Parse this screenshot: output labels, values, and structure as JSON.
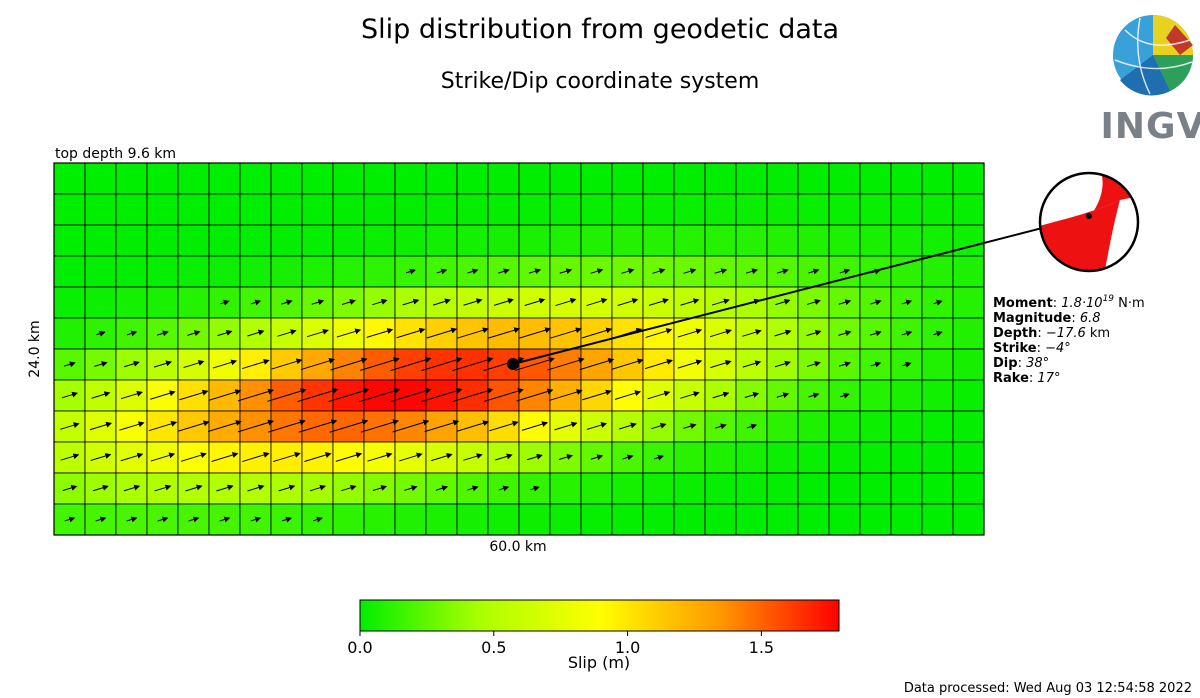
{
  "title": "Slip distribution from geodetic data",
  "subtitle": "Strike/Dip coordinate system",
  "logo": {
    "text": "INGV",
    "colors": [
      "#1f6fb0",
      "#3aa0d8",
      "#e8d21f",
      "#c0392b",
      "#2e9e5b"
    ]
  },
  "fault_labels": {
    "top_depth": "top depth 9.6 km",
    "width": "24.0 km",
    "length": "60.0 km"
  },
  "info": {
    "moment_label": "Moment",
    "moment_mantissa": "1.8·10",
    "moment_exponent": "19",
    "moment_unit": " N·m",
    "magnitude_label": "Magnitude",
    "magnitude_value": "6.8",
    "depth_label": "Depth",
    "depth_value": "−17.6",
    "depth_unit": " km",
    "strike_label": "Strike",
    "strike_value": "−4°",
    "dip_label": "Dip",
    "dip_value": "38°",
    "rake_label": "Rake",
    "rake_value": "17°"
  },
  "colorbar": {
    "label": "Slip (m)",
    "ticks": [
      "0.0",
      "0.5",
      "1.0",
      "1.5"
    ],
    "min": 0.0,
    "max": 1.79,
    "colors": [
      "#00ee00",
      "#aaff00",
      "#ffff00",
      "#ff9900",
      "#ff0000"
    ]
  },
  "footer": "Data processed: Wed Aug 03 12:54:58 2022",
  "beachball_colors": {
    "compression": "#ee1111",
    "dilatation": "#ffffff"
  },
  "chart_data": {
    "type": "heatmap",
    "title": "Slip distribution from geodetic data",
    "subtitle": "Strike/Dip coordinate system",
    "grid": {
      "columns": 30,
      "rows": 12,
      "length_km": 60.0,
      "width_km": 24.0,
      "top_depth_km": 9.6
    },
    "hypocenter_cell": {
      "col": 14.8,
      "row": 6.5
    },
    "rake_deg": 17,
    "slip_model": {
      "description": "elliptical patch, peak near centre-left at depth",
      "center_col": 11.5,
      "center_row": 7.3,
      "peak_slip_m": 1.79,
      "sigma_col": 10.5,
      "sigma_row": 2.4,
      "tilt": 0.14
    },
    "colorbar": {
      "min": 0.0,
      "max": 1.79,
      "label": "Slip (m)",
      "ticks": [
        0.0,
        0.5,
        1.0,
        1.5
      ]
    }
  }
}
